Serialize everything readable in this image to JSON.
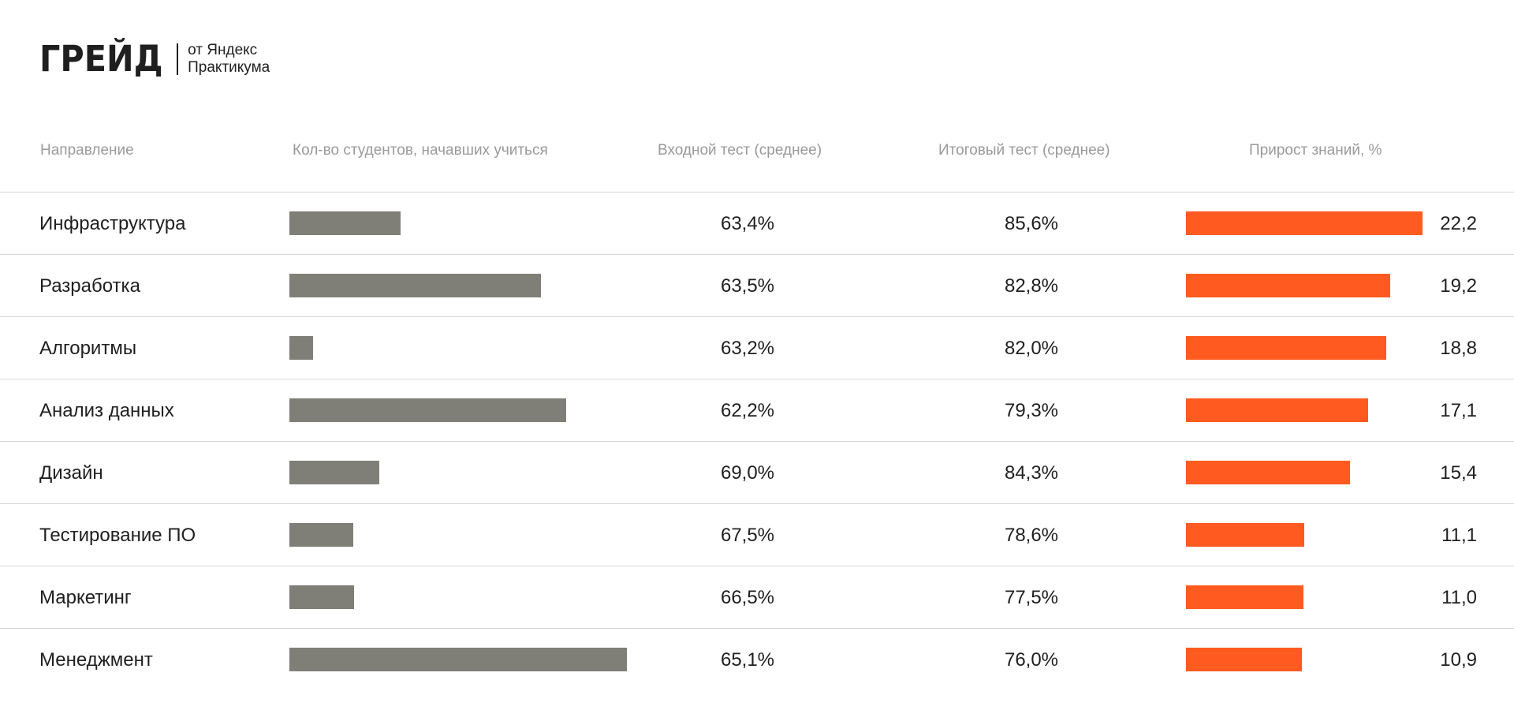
{
  "brand": {
    "logo_text": "ГРЕЙД",
    "subtitle_line1": "от Яндекс",
    "subtitle_line2": "Практикума"
  },
  "headers": {
    "direction": "Направление",
    "students": "Кол-во студентов, начавших учиться",
    "entry_test": "Входной тест (среднее)",
    "final_test": "Итоговый тест (среднее)",
    "gain": "Прирост знаний, %"
  },
  "colors": {
    "students_bar": "#7f7f78",
    "gain_bar": "#ff5a1f",
    "header_text": "#9a9a9a",
    "row_divider": "#d6d6d6"
  },
  "rows": [
    {
      "name": "Инфраструктура",
      "students_relative": 0.33,
      "entry": "63,4%",
      "final": "85,6%",
      "gain_label": "22,2"
    },
    {
      "name": "Разработка",
      "students_relative": 0.745,
      "entry": "63,5%",
      "final": "82,8%",
      "gain_label": "19,2"
    },
    {
      "name": "Алгоритмы",
      "students_relative": 0.069,
      "entry": "63,2%",
      "final": "82,0%",
      "gain_label": "18,8"
    },
    {
      "name": "Анализ данных",
      "students_relative": 0.82,
      "entry": "62,2%",
      "final": "79,3%",
      "gain_label": "17,1"
    },
    {
      "name": "Дизайн",
      "students_relative": 0.266,
      "entry": "69,0%",
      "final": "84,3%",
      "gain_label": "15,4"
    },
    {
      "name": "Тестирование ПО",
      "students_relative": 0.189,
      "entry": "67,5%",
      "final": "78,6%",
      "gain_label": "11,1"
    },
    {
      "name": "Маркетинг",
      "students_relative": 0.192,
      "entry": "66,5%",
      "final": "77,5%",
      "gain_label": "11,0"
    },
    {
      "name": "Менеджмент",
      "students_relative": 1.0,
      "entry": "65,1%",
      "final": "76,0%",
      "gain_label": "10,9"
    }
  ],
  "chart_data": {
    "type": "table",
    "columns": [
      "Направление",
      "Кол-во студентов, начавших учиться",
      "Входной тест (среднее)",
      "Итоговый тест (среднее)",
      "Прирост знаний, %"
    ],
    "categories": [
      "Инфраструктура",
      "Разработка",
      "Алгоритмы",
      "Анализ данных",
      "Дизайн",
      "Тестирование ПО",
      "Маркетинг",
      "Менеджмент"
    ],
    "series": [
      {
        "values": [
          0.33,
          0.745,
          0.069,
          0.82,
          0.266,
          0.189,
          0.192,
          1.0
        ]
      },
      {
        "name": "Входной тест (среднее)",
        "values": [
          63.4,
          63.5,
          63.2,
          62.2,
          69.0,
          67.5,
          66.5,
          65.1
        ]
      },
      {
        "name": "Итоговый тест (среднее)",
        "values": [
          85.6,
          82.8,
          82.0,
          79.3,
          84.3,
          78.6,
          77.5,
          76.0
        ]
      },
      {
        "name": "Прирост знаний, %",
        "values": [
          22.2,
          19.2,
          18.8,
          17.1,
          15.4,
          11.1,
          11.0,
          10.9
        ]
      }
    ]
  }
}
